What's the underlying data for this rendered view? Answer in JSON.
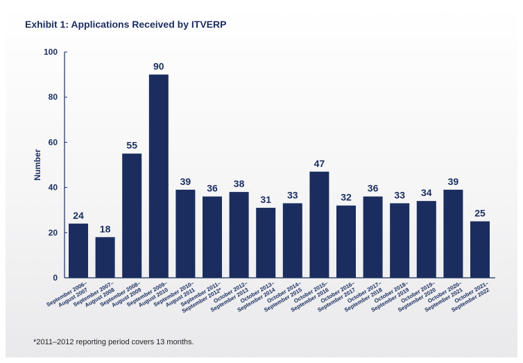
{
  "title": "Exhibit 1: Applications Received by ITVERP",
  "footnote": "*2011–2012 reporting period covers 13 months.",
  "colors": {
    "bar": "#1a2d5e",
    "text": "#1a2d5e",
    "axis": "#1a2d5e"
  },
  "chart_data": {
    "type": "bar",
    "title": "Exhibit 1: Applications Received by ITVERP",
    "xlabel": "",
    "ylabel": "Number",
    "ylim": [
      0,
      100
    ],
    "yticks": [
      0,
      20,
      40,
      60,
      80,
      100
    ],
    "grid": false,
    "categories": [
      [
        "September 2006–",
        "August 2007"
      ],
      [
        "September 2007–",
        "August 2008"
      ],
      [
        "September 2008–",
        "August 2009"
      ],
      [
        "September 2009–",
        "August 2010"
      ],
      [
        "September 2010–",
        "August 2011"
      ],
      [
        "September 2011–",
        "September 2012*"
      ],
      [
        "October 2012–",
        "September 2013"
      ],
      [
        "October 2013–",
        "September 2014"
      ],
      [
        "October 2014–",
        "September 2015"
      ],
      [
        "October 2015–",
        "September 2016"
      ],
      [
        "October 2016–",
        "September 2017"
      ],
      [
        "October 2017–",
        "September 2018"
      ],
      [
        "October 2018–",
        "September 2019"
      ],
      [
        "October 2019–",
        "September 2020"
      ],
      [
        "October 2020–",
        "September 2021"
      ],
      [
        "October 2021–",
        "September 2022"
      ]
    ],
    "values": [
      24,
      18,
      55,
      90,
      39,
      36,
      38,
      31,
      33,
      47,
      32,
      36,
      33,
      34,
      39,
      25
    ]
  }
}
